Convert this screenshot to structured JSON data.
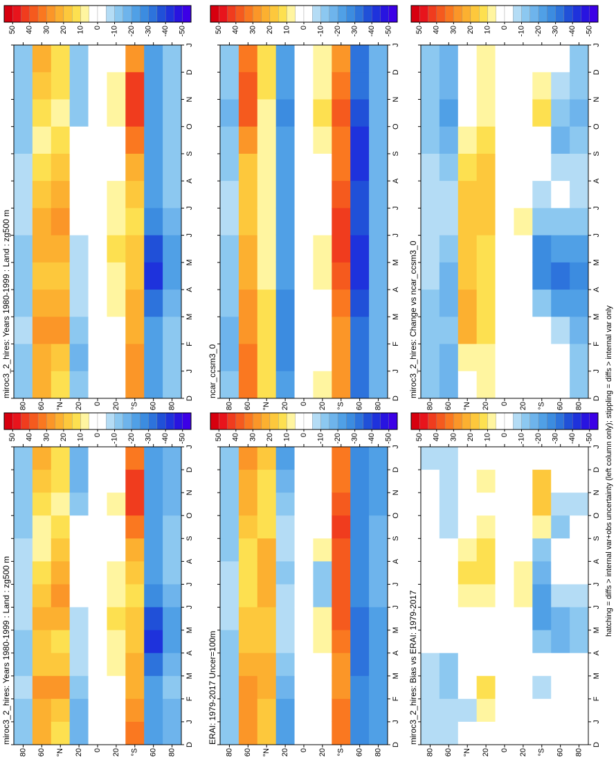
{
  "chart_data": [
    {
      "type": "heatmap",
      "title": "miroc3_2_hires: Years 1980-1999 : Land : zg500 m",
      "xticks": [
        "D",
        "J",
        "F",
        "M",
        "A",
        "M",
        "J",
        "J",
        "A",
        "S",
        "O",
        "N",
        "D",
        "J"
      ],
      "ylim": [
        90,
        -90
      ],
      "yticks": [
        80,
        60,
        {
          "value": 40,
          "label": "°N"
        },
        20,
        0,
        {
          "value": -20,
          "label": "20"
        },
        {
          "value": -40,
          "label": "°S"
        },
        {
          "value": -60,
          "label": "60"
        },
        {
          "value": -80,
          "label": "80"
        }
      ],
      "rows": [
        80,
        60,
        40,
        20,
        0,
        -20,
        -40,
        -60,
        -80
      ],
      "values": [
        [
          -10,
          -10,
          -8,
          -10,
          -12,
          -8,
          -5,
          -5,
          -8,
          -10,
          -12,
          -10,
          -10
        ],
        [
          25,
          25,
          30,
          20,
          18,
          22,
          20,
          15,
          10,
          10,
          15,
          20,
          25
        ],
        [
          15,
          18,
          28,
          20,
          15,
          25,
          28,
          25,
          20,
          15,
          10,
          12,
          15
        ],
        [
          -15,
          -15,
          -12,
          -8,
          -5,
          -5,
          5,
          5,
          5,
          0,
          -10,
          -15,
          -15
        ],
        [
          0,
          0,
          0,
          0,
          0,
          0,
          0,
          0,
          0,
          0,
          0,
          0,
          0
        ],
        [
          5,
          5,
          5,
          8,
          10,
          12,
          10,
          8,
          5,
          5,
          8,
          5,
          5
        ],
        [
          35,
          30,
          25,
          25,
          20,
          18,
          15,
          20,
          25,
          35,
          45,
          45,
          35
        ],
        [
          -20,
          -20,
          -20,
          -30,
          -40,
          -35,
          -25,
          -20,
          -20,
          -20,
          -20,
          -20,
          -20
        ],
        [
          -15,
          -15,
          -12,
          -15,
          -20,
          -20,
          -15,
          -12,
          -10,
          -10,
          -15,
          -15,
          -15
        ]
      ]
    },
    {
      "type": "heatmap",
      "title": "ERAI: 1979-2017 Uncer=100m",
      "xticks": [
        "D",
        "J",
        "F",
        "M",
        "A",
        "M",
        "J",
        "J",
        "A",
        "S",
        "O",
        "N",
        "D",
        "J"
      ],
      "ylim": [
        90,
        -90
      ],
      "yticks": [
        80,
        60,
        {
          "value": 40,
          "label": "°N"
        },
        20,
        0,
        {
          "value": -20,
          "label": "20"
        },
        {
          "value": -40,
          "label": "°S"
        },
        {
          "value": -60,
          "label": "60"
        },
        {
          "value": -80,
          "label": "80"
        }
      ],
      "rows": [
        80,
        60,
        40,
        20,
        0,
        -20,
        -40,
        -60,
        -80
      ],
      "values": [
        [
          -12,
          -12,
          -12,
          -10,
          -10,
          -8,
          -8,
          -8,
          -10,
          -12,
          -12,
          -12,
          -12
        ],
        [
          28,
          28,
          28,
          25,
          20,
          18,
          15,
          15,
          15,
          18,
          22,
          25,
          28
        ],
        [
          18,
          20,
          25,
          22,
          18,
          20,
          25,
          25,
          22,
          15,
          12,
          15,
          18
        ],
        [
          -20,
          -20,
          -15,
          -10,
          -5,
          -5,
          -8,
          -10,
          -8,
          -5,
          -12,
          -18,
          -20
        ],
        [
          0,
          0,
          0,
          0,
          0,
          0,
          0,
          0,
          0,
          0,
          0,
          0,
          0
        ],
        [
          5,
          5,
          5,
          5,
          8,
          10,
          -12,
          -10,
          8,
          5,
          5,
          5,
          5
        ],
        [
          35,
          35,
          30,
          30,
          35,
          40,
          40,
          40,
          40,
          45,
          40,
          35,
          35
        ],
        [
          -25,
          -25,
          -25,
          -30,
          -30,
          -30,
          -25,
          -25,
          -25,
          -25,
          -25,
          -25,
          -25
        ],
        [
          -20,
          -20,
          -20,
          -20,
          -20,
          -20,
          -18,
          -15,
          -15,
          -18,
          -20,
          -20,
          -20
        ]
      ]
    },
    {
      "type": "heatmap",
      "title": "miroc3_2_hires: Bias vs ERAI: 1979-2017",
      "xticks": [
        "D",
        "J",
        "F",
        "M",
        "A",
        "M",
        "J",
        "J",
        "A",
        "S",
        "O",
        "N",
        "D",
        "J"
      ],
      "ylim": [
        90,
        -90
      ],
      "yticks": [
        80,
        60,
        {
          "value": 40,
          "label": "°N"
        },
        20,
        0,
        {
          "value": -20,
          "label": "20"
        },
        {
          "value": -40,
          "label": "°S"
        },
        {
          "value": -60,
          "label": "60"
        },
        {
          "value": -80,
          "label": "80"
        }
      ],
      "rows": [
        80,
        60,
        40,
        20,
        0,
        -20,
        -40,
        -60,
        -80
      ],
      "values": [
        [
          -5,
          -8,
          -5,
          -5,
          0,
          0,
          5,
          5,
          0,
          0,
          0,
          0,
          -5
        ],
        [
          -5,
          -8,
          -12,
          -10,
          0,
          5,
          5,
          5,
          0,
          -5,
          -5,
          -5,
          -5
        ],
        [
          0,
          -5,
          5,
          0,
          0,
          5,
          10,
          12,
          8,
          5,
          0,
          0,
          0
        ],
        [
          5,
          10,
          12,
          5,
          0,
          0,
          10,
          12,
          12,
          8,
          5,
          10,
          5
        ],
        [
          0,
          0,
          0,
          0,
          0,
          0,
          0,
          0,
          0,
          0,
          0,
          0,
          0
        ],
        [
          0,
          0,
          0,
          0,
          0,
          5,
          10,
          8,
          0,
          0,
          0,
          0,
          0
        ],
        [
          5,
          0,
          -5,
          0,
          -10,
          -20,
          -20,
          -15,
          -10,
          10,
          20,
          20,
          5
        ],
        [
          0,
          5,
          5,
          0,
          -15,
          -15,
          -5,
          0,
          0,
          -10,
          -5,
          0,
          0
        ],
        [
          0,
          0,
          0,
          0,
          -10,
          -10,
          -5,
          0,
          0,
          0,
          -5,
          0,
          0
        ]
      ]
    },
    {
      "type": "heatmap",
      "title": "miroc3_2_hires: Years 1980-1999 : Land : zg500 m",
      "xticks": [
        "D",
        "J",
        "F",
        "M",
        "A",
        "M",
        "J",
        "J",
        "A",
        "S",
        "O",
        "N",
        "D",
        "J"
      ],
      "ylim": [
        90,
        -90
      ],
      "yticks": [
        80,
        60,
        {
          "value": 40,
          "label": "°N"
        },
        20,
        0,
        {
          "value": -20,
          "label": "20"
        },
        {
          "value": -40,
          "label": "°S"
        },
        {
          "value": -60,
          "label": "60"
        },
        {
          "value": -80,
          "label": "80"
        }
      ],
      "rows": [
        80,
        60,
        40,
        20,
        0,
        -20,
        -40,
        -60,
        -80
      ],
      "values": [
        [
          -10,
          -10,
          -8,
          -10,
          -12,
          -10,
          -5,
          -5,
          -5,
          -10,
          -12,
          -10,
          -10
        ],
        [
          22,
          25,
          30,
          22,
          20,
          25,
          22,
          18,
          12,
          10,
          15,
          18,
          22
        ],
        [
          15,
          18,
          28,
          22,
          18,
          25,
          28,
          25,
          20,
          15,
          10,
          12,
          15
        ],
        [
          -12,
          -15,
          -12,
          -8,
          -5,
          -5,
          5,
          5,
          5,
          0,
          -10,
          -12,
          -12
        ],
        [
          0,
          0,
          0,
          0,
          0,
          0,
          0,
          0,
          0,
          0,
          0,
          0,
          0
        ],
        [
          5,
          5,
          5,
          8,
          10,
          12,
          10,
          8,
          5,
          5,
          8,
          10,
          5
        ],
        [
          30,
          30,
          25,
          25,
          20,
          18,
          15,
          20,
          25,
          35,
          45,
          45,
          30
        ],
        [
          -20,
          -20,
          -20,
          -30,
          -40,
          -35,
          -25,
          -20,
          -20,
          -20,
          -20,
          -20,
          -20
        ],
        [
          -12,
          -12,
          -12,
          -15,
          -20,
          -20,
          -15,
          -12,
          -10,
          -10,
          -12,
          -12,
          -12
        ]
      ]
    },
    {
      "type": "heatmap",
      "title": "ncar_ccsm3_0",
      "xticks": [
        "D",
        "J",
        "F",
        "M",
        "A",
        "M",
        "J",
        "J",
        "A",
        "S",
        "O",
        "N",
        "D",
        "J"
      ],
      "ylim": [
        90,
        -90
      ],
      "yticks": [
        80,
        60,
        {
          "value": 40,
          "label": "°N"
        },
        20,
        0,
        {
          "value": -20,
          "label": "20"
        },
        {
          "value": -40,
          "label": "°S"
        },
        {
          "value": -60,
          "label": "60"
        },
        {
          "value": -80,
          "label": "80"
        }
      ],
      "rows": [
        80,
        60,
        40,
        20,
        0,
        -20,
        -40,
        -60,
        -80
      ],
      "values": [
        [
          -12,
          -15,
          -15,
          -12,
          -10,
          -10,
          -8,
          -8,
          -10,
          -12,
          -15,
          -12,
          -12
        ],
        [
          35,
          35,
          30,
          30,
          25,
          25,
          20,
          20,
          20,
          30,
          40,
          40,
          35
        ],
        [
          15,
          15,
          15,
          15,
          10,
          10,
          10,
          10,
          10,
          10,
          10,
          15,
          15
        ],
        [
          -20,
          -25,
          -25,
          -25,
          -20,
          -20,
          -20,
          -20,
          -20,
          -20,
          -25,
          -20,
          -20
        ],
        [
          0,
          0,
          0,
          0,
          0,
          0,
          0,
          0,
          0,
          0,
          0,
          0,
          0
        ],
        [
          10,
          5,
          5,
          5,
          10,
          10,
          5,
          5,
          5,
          10,
          12,
          10,
          10
        ],
        [
          30,
          30,
          30,
          35,
          40,
          45,
          45,
          40,
          35,
          35,
          40,
          35,
          30
        ],
        [
          -30,
          -30,
          -30,
          -35,
          -40,
          -40,
          -35,
          -35,
          -40,
          -40,
          -35,
          -30,
          -30
        ],
        [
          -15,
          -15,
          -15,
          -15,
          -15,
          -15,
          -15,
          -15,
          -15,
          -15,
          -15,
          -15,
          -15
        ]
      ]
    },
    {
      "type": "heatmap",
      "title": "miroc3_2_hires: Change vs ncar_ccsm3_0",
      "xticks": [
        "D",
        "J",
        "F",
        "M",
        "A",
        "M",
        "J",
        "J",
        "A",
        "S",
        "O",
        "N",
        "D",
        "J"
      ],
      "ylim": [
        90,
        -90
      ],
      "yticks": [
        80,
        60,
        {
          "value": 40,
          "label": "°N"
        },
        20,
        0,
        {
          "value": -20,
          "label": "20"
        },
        {
          "value": -40,
          "label": "°S"
        },
        {
          "value": -60,
          "label": "60"
        },
        {
          "value": -80,
          "label": "80"
        }
      ],
      "rows": [
        80,
        60,
        40,
        20,
        0,
        -20,
        -40,
        -60,
        -80
      ],
      "values": [
        [
          -10,
          -10,
          -10,
          -10,
          -5,
          -5,
          -5,
          -5,
          -5,
          -10,
          -10,
          -10,
          -10
        ],
        [
          -15,
          -15,
          -10,
          -15,
          -15,
          -10,
          -5,
          -5,
          -10,
          -15,
          -20,
          -15,
          -15
        ],
        [
          5,
          10,
          25,
          25,
          20,
          20,
          20,
          20,
          15,
          10,
          0,
          0,
          5
        ],
        [
          10,
          10,
          15,
          15,
          15,
          15,
          20,
          20,
          20,
          15,
          10,
          10,
          10
        ],
        [
          0,
          0,
          0,
          0,
          0,
          0,
          0,
          0,
          0,
          0,
          0,
          0,
          0
        ],
        [
          0,
          0,
          0,
          0,
          0,
          5,
          10,
          5,
          0,
          0,
          0,
          0,
          0
        ],
        [
          5,
          0,
          0,
          -10,
          -25,
          -25,
          -10,
          -5,
          0,
          5,
          15,
          10,
          5
        ],
        [
          5,
          0,
          -5,
          -20,
          -30,
          -20,
          -10,
          0,
          -5,
          -15,
          -10,
          -5,
          5
        ],
        [
          -10,
          -10,
          -15,
          -20,
          -25,
          -20,
          -10,
          -5,
          -5,
          -10,
          -15,
          -10,
          -10
        ]
      ]
    }
  ],
  "colorbar": {
    "clim": [
      55,
      -55
    ],
    "ticks": [
      50,
      40,
      30,
      20,
      10,
      0,
      -10,
      -20,
      -30,
      -40,
      -50
    ],
    "colors": [
      "#d7000f",
      "#e8141c",
      "#f03c1e",
      "#f55a1e",
      "#fa7820",
      "#fb9628",
      "#fcb030",
      "#fdc83c",
      "#fde050",
      "#fff5a0",
      "#ffffff",
      "#ffffff",
      "#b4dcf5",
      "#8cc8f0",
      "#6eb4ec",
      "#50a0e6",
      "#3c8ce0",
      "#2d73dc",
      "#2050d8",
      "#1e32dc",
      "#2814e0",
      "#3c00e6"
    ]
  },
  "footnote": "hatching = diffs > internal var+obs uncertainty (left column only); stippling = diffs > internal var only"
}
